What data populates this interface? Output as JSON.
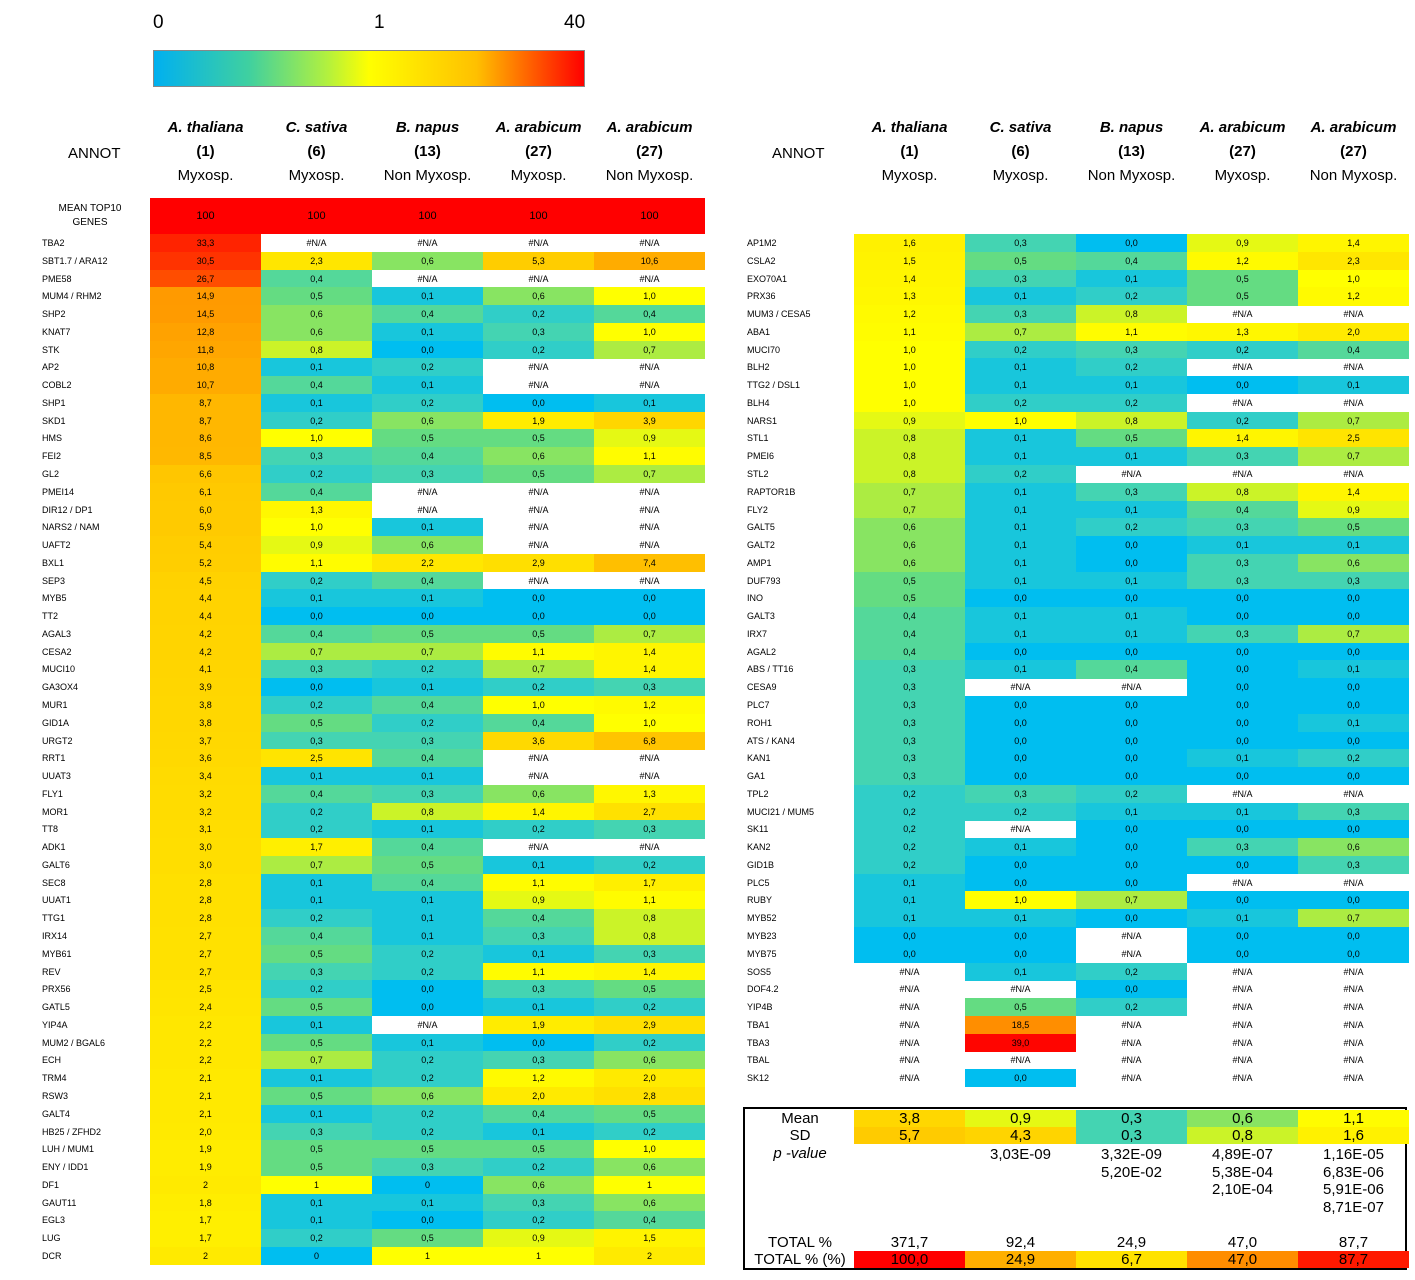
{
  "scale": {
    "labels": [
      "0",
      "1",
      "40"
    ],
    "colors": [
      "#00b0f0",
      "#ffff00",
      "#ff0000"
    ]
  },
  "headers": [
    {
      "species": "A. thaliana",
      "n": "(1)",
      "type": "Myxosp."
    },
    {
      "species": "C. sativa",
      "n": "(6)",
      "type": "Myxosp."
    },
    {
      "species": "B. napus",
      "n": "(13)",
      "type": "Non Myxosp."
    },
    {
      "species": "A. arabicum",
      "n": "(27)",
      "type": "Myxosp."
    },
    {
      "species": "A. arabicum",
      "n": "(27)",
      "type": "Non Myxosp."
    }
  ],
  "annot_label": "ANNOT",
  "top10_label": "MEAN TOP10 GENES",
  "top10_values": [
    "100",
    "100",
    "100",
    "100",
    "100"
  ],
  "chart_data": {
    "type": "heatmap",
    "title": "",
    "columns": [
      "A. thaliana (1) Myxosp.",
      "C. sativa (6) Myxosp.",
      "B. napus (13) Non Myxosp.",
      "A. arabicum (27) Myxosp.",
      "A. arabicum (27) Non Myxosp."
    ],
    "color_scale": {
      "min": 0,
      "mid": 1,
      "max": 40
    },
    "left_rows": [
      [
        "TBA2",
        "33,3",
        "#N/A",
        "#N/A",
        "#N/A",
        "#N/A"
      ],
      [
        "SBT1.7 / ARA12",
        "30,5",
        "2,3",
        "0,6",
        "5,3",
        "10,6"
      ],
      [
        "PME58",
        "26,7",
        "0,4",
        "#N/A",
        "#N/A",
        "#N/A"
      ],
      [
        "MUM4 / RHM2",
        "14,9",
        "0,5",
        "0,1",
        "0,6",
        "1,0"
      ],
      [
        "SHP2",
        "14,5",
        "0,6",
        "0,4",
        "0,2",
        "0,4"
      ],
      [
        "KNAT7",
        "12,8",
        "0,6",
        "0,1",
        "0,3",
        "1,0"
      ],
      [
        "STK",
        "11,8",
        "0,8",
        "0,0",
        "0,2",
        "0,7"
      ],
      [
        "AP2",
        "10,8",
        "0,1",
        "0,2",
        "#N/A",
        "#N/A"
      ],
      [
        "COBL2",
        "10,7",
        "0,4",
        "0,1",
        "#N/A",
        "#N/A"
      ],
      [
        "SHP1",
        "8,7",
        "0,1",
        "0,2",
        "0,0",
        "0,1"
      ],
      [
        "SKD1",
        "8,7",
        "0,2",
        "0,6",
        "1,9",
        "3,9"
      ],
      [
        "HMS",
        "8,6",
        "1,0",
        "0,5",
        "0,5",
        "0,9"
      ],
      [
        "FEI2",
        "8,5",
        "0,3",
        "0,4",
        "0,6",
        "1,1"
      ],
      [
        "GL2",
        "6,6",
        "0,2",
        "0,3",
        "0,5",
        "0,7"
      ],
      [
        "PMEI14",
        "6,1",
        "0,4",
        "#N/A",
        "#N/A",
        "#N/A"
      ],
      [
        "DIR12 / DP1",
        "6,0",
        "1,3",
        "#N/A",
        "#N/A",
        "#N/A"
      ],
      [
        "NARS2 / NAM",
        "5,9",
        "1,0",
        "0,1",
        "#N/A",
        "#N/A"
      ],
      [
        "UAFT2",
        "5,4",
        "0,9",
        "0,6",
        "#N/A",
        "#N/A"
      ],
      [
        "BXL1",
        "5,2",
        "1,1",
        "2,2",
        "2,9",
        "7,4"
      ],
      [
        "SEP3",
        "4,5",
        "0,2",
        "0,4",
        "#N/A",
        "#N/A"
      ],
      [
        "MYB5",
        "4,4",
        "0,1",
        "0,1",
        "0,0",
        "0,0"
      ],
      [
        "TT2",
        "4,4",
        "0,0",
        "0,0",
        "0,0",
        "0,0"
      ],
      [
        "AGAL3",
        "4,2",
        "0,4",
        "0,5",
        "0,5",
        "0,7"
      ],
      [
        "CESA2",
        "4,2",
        "0,7",
        "0,7",
        "1,1",
        "1,4"
      ],
      [
        "MUCI10",
        "4,1",
        "0,3",
        "0,2",
        "0,7",
        "1,4"
      ],
      [
        "GA3OX4",
        "3,9",
        "0,0",
        "0,1",
        "0,2",
        "0,3"
      ],
      [
        "MUR1",
        "3,8",
        "0,2",
        "0,4",
        "1,0",
        "1,2"
      ],
      [
        "GID1A",
        "3,8",
        "0,5",
        "0,2",
        "0,4",
        "1,0"
      ],
      [
        "URGT2",
        "3,7",
        "0,3",
        "0,3",
        "3,6",
        "6,8"
      ],
      [
        "RRT1",
        "3,6",
        "2,5",
        "0,4",
        "#N/A",
        "#N/A"
      ],
      [
        "UUAT3",
        "3,4",
        "0,1",
        "0,1",
        "#N/A",
        "#N/A"
      ],
      [
        "FLY1",
        "3,2",
        "0,4",
        "0,3",
        "0,6",
        "1,3"
      ],
      [
        "MOR1",
        "3,2",
        "0,2",
        "0,8",
        "1,4",
        "2,7"
      ],
      [
        "TT8",
        "3,1",
        "0,2",
        "0,1",
        "0,2",
        "0,3"
      ],
      [
        "ADK1",
        "3,0",
        "1,7",
        "0,4",
        "#N/A",
        "#N/A"
      ],
      [
        "GALT6",
        "3,0",
        "0,7",
        "0,5",
        "0,1",
        "0,2"
      ],
      [
        "SEC8",
        "2,8",
        "0,1",
        "0,4",
        "1,1",
        "1,7"
      ],
      [
        "UUAT1",
        "2,8",
        "0,1",
        "0,1",
        "0,9",
        "1,1"
      ],
      [
        "TTG1",
        "2,8",
        "0,2",
        "0,1",
        "0,4",
        "0,8"
      ],
      [
        "IRX14",
        "2,7",
        "0,4",
        "0,1",
        "0,3",
        "0,8"
      ],
      [
        "MYB61",
        "2,7",
        "0,5",
        "0,2",
        "0,1",
        "0,3"
      ],
      [
        "REV",
        "2,7",
        "0,3",
        "0,2",
        "1,1",
        "1,4"
      ],
      [
        "PRX56",
        "2,5",
        "0,2",
        "0,0",
        "0,3",
        "0,5"
      ],
      [
        "GATL5",
        "2,4",
        "0,5",
        "0,0",
        "0,1",
        "0,2"
      ],
      [
        "YIP4A",
        "2,2",
        "0,1",
        "#N/A",
        "1,9",
        "2,9"
      ],
      [
        "MUM2 / BGAL6",
        "2,2",
        "0,5",
        "0,1",
        "0,0",
        "0,2"
      ],
      [
        "ECH",
        "2,2",
        "0,7",
        "0,2",
        "0,3",
        "0,6"
      ],
      [
        "TRM4",
        "2,1",
        "0,1",
        "0,2",
        "1,2",
        "2,0"
      ],
      [
        "RSW3",
        "2,1",
        "0,5",
        "0,6",
        "2,0",
        "2,8"
      ],
      [
        "GALT4",
        "2,1",
        "0,1",
        "0,2",
        "0,4",
        "0,5"
      ],
      [
        "HB25 / ZFHD2",
        "2,0",
        "0,3",
        "0,2",
        "0,1",
        "0,2"
      ],
      [
        "LUH / MUM1",
        "1,9",
        "0,5",
        "0,5",
        "0,5",
        "1,0"
      ],
      [
        "ENY / IDD1",
        "1,9",
        "0,5",
        "0,3",
        "0,2",
        "0,6"
      ],
      [
        "DF1",
        "2",
        "1",
        "0",
        "0,6",
        "1"
      ],
      [
        "GAUT11",
        "1,8",
        "0,1",
        "0,1",
        "0,3",
        "0,6"
      ],
      [
        "EGL3",
        "1,7",
        "0,1",
        "0,0",
        "0,2",
        "0,4"
      ],
      [
        "LUG",
        "1,7",
        "0,2",
        "0,5",
        "0,9",
        "1,5"
      ],
      [
        "DCR",
        "2",
        "0",
        "1",
        "1",
        "2"
      ]
    ],
    "right_rows": [
      [
        "AP1M2",
        "1,6",
        "0,3",
        "0,0",
        "0,9",
        "1,4"
      ],
      [
        "CSLA2",
        "1,5",
        "0,5",
        "0,4",
        "1,2",
        "2,3"
      ],
      [
        "EXO70A1",
        "1,4",
        "0,3",
        "0,1",
        "0,5",
        "1,0"
      ],
      [
        "PRX36",
        "1,3",
        "0,1",
        "0,2",
        "0,5",
        "1,2"
      ],
      [
        "MUM3 / CESA5",
        "1,2",
        "0,3",
        "0,8",
        "#N/A",
        "#N/A"
      ],
      [
        "ABA1",
        "1,1",
        "0,7",
        "1,1",
        "1,3",
        "2,0"
      ],
      [
        "MUCI70",
        "1,0",
        "0,2",
        "0,3",
        "0,2",
        "0,4"
      ],
      [
        "BLH2",
        "1,0",
        "0,1",
        "0,2",
        "#N/A",
        "#N/A"
      ],
      [
        "TTG2 / DSL1",
        "1,0",
        "0,1",
        "0,1",
        "0,0",
        "0,1"
      ],
      [
        "BLH4",
        "1,0",
        "0,2",
        "0,2",
        "#N/A",
        "#N/A"
      ],
      [
        "NARS1",
        "0,9",
        "1,0",
        "0,8",
        "0,2",
        "0,7"
      ],
      [
        "STL1",
        "0,8",
        "0,1",
        "0,5",
        "1,4",
        "2,5"
      ],
      [
        "PMEI6",
        "0,8",
        "0,1",
        "0,1",
        "0,3",
        "0,7"
      ],
      [
        "STL2",
        "0,8",
        "0,2",
        "#N/A",
        "#N/A",
        "#N/A"
      ],
      [
        "RAPTOR1B",
        "0,7",
        "0,1",
        "0,3",
        "0,8",
        "1,4"
      ],
      [
        "FLY2",
        "0,7",
        "0,1",
        "0,1",
        "0,4",
        "0,9"
      ],
      [
        "GALT5",
        "0,6",
        "0,1",
        "0,2",
        "0,3",
        "0,5"
      ],
      [
        "GALT2",
        "0,6",
        "0,1",
        "0,0",
        "0,1",
        "0,1"
      ],
      [
        "AMP1",
        "0,6",
        "0,1",
        "0,0",
        "0,3",
        "0,6"
      ],
      [
        "DUF793",
        "0,5",
        "0,1",
        "0,1",
        "0,3",
        "0,3"
      ],
      [
        "INO",
        "0,5",
        "0,0",
        "0,0",
        "0,0",
        "0,0"
      ],
      [
        "GALT3",
        "0,4",
        "0,1",
        "0,1",
        "0,0",
        "0,0"
      ],
      [
        "IRX7",
        "0,4",
        "0,1",
        "0,1",
        "0,3",
        "0,7"
      ],
      [
        "AGAL2",
        "0,4",
        "0,0",
        "0,0",
        "0,0",
        "0,0"
      ],
      [
        "ABS / TT16",
        "0,3",
        "0,1",
        "0,4",
        "0,0",
        "0,1"
      ],
      [
        "CESA9",
        "0,3",
        "#N/A",
        "#N/A",
        "0,0",
        "0,0"
      ],
      [
        "PLC7",
        "0,3",
        "0,0",
        "0,0",
        "0,0",
        "0,0"
      ],
      [
        "ROH1",
        "0,3",
        "0,0",
        "0,0",
        "0,0",
        "0,1"
      ],
      [
        "ATS / KAN4",
        "0,3",
        "0,0",
        "0,0",
        "0,0",
        "0,0"
      ],
      [
        "KAN1",
        "0,3",
        "0,0",
        "0,0",
        "0,1",
        "0,2"
      ],
      [
        "GA1",
        "0,3",
        "0,0",
        "0,0",
        "0,0",
        "0,0"
      ],
      [
        "TPL2",
        "0,2",
        "0,3",
        "0,2",
        "#N/A",
        "#N/A"
      ],
      [
        "MUCI21 / MUM5",
        "0,2",
        "0,2",
        "0,1",
        "0,1",
        "0,3"
      ],
      [
        "SK11",
        "0,2",
        "#N/A",
        "0,0",
        "0,0",
        "0,0"
      ],
      [
        "KAN2",
        "0,2",
        "0,1",
        "0,0",
        "0,3",
        "0,6"
      ],
      [
        "GID1B",
        "0,2",
        "0,0",
        "0,0",
        "0,0",
        "0,3"
      ],
      [
        "PLC5",
        "0,1",
        "0,0",
        "0,0",
        "#N/A",
        "#N/A"
      ],
      [
        "RUBY",
        "0,1",
        "1,0",
        "0,7",
        "0,0",
        "0,0"
      ],
      [
        "MYB52",
        "0,1",
        "0,1",
        "0,0",
        "0,1",
        "0,7"
      ],
      [
        "MYB23",
        "0,0",
        "0,0",
        "#N/A",
        "0,0",
        "0,0"
      ],
      [
        "MYB75",
        "0,0",
        "0,0",
        "#N/A",
        "0,0",
        "0,0"
      ],
      [
        "SOS5",
        "#N/A",
        "0,1",
        "0,2",
        "#N/A",
        "#N/A"
      ],
      [
        "DOF4.2",
        "#N/A",
        "#N/A",
        "0,0",
        "#N/A",
        "#N/A"
      ],
      [
        "YIP4B",
        "#N/A",
        "0,5",
        "0,2",
        "#N/A",
        "#N/A"
      ],
      [
        "TBA1",
        "#N/A",
        "18,5",
        "#N/A",
        "#N/A",
        "#N/A"
      ],
      [
        "TBA3",
        "#N/A",
        "39,0",
        "#N/A",
        "#N/A",
        "#N/A"
      ],
      [
        "TBAL",
        "#N/A",
        "#N/A",
        "#N/A",
        "#N/A",
        "#N/A"
      ],
      [
        "SK12",
        "#N/A",
        "0,0",
        "#N/A",
        "#N/A",
        "#N/A"
      ]
    ],
    "summary": {
      "mean_label": "Mean",
      "sd_label": "SD",
      "pvalue_label": "p -value",
      "total_label": "TOTAL %",
      "total_pct_label": "TOTAL % (%)",
      "mean": [
        "3,8",
        "0,9",
        "0,3",
        "0,6",
        "1,1"
      ],
      "sd": [
        "5,7",
        "4,3",
        "0,3",
        "0,8",
        "1,6"
      ],
      "pvalues": [
        [],
        [
          "3,03E-09"
        ],
        [
          "3,32E-09",
          "5,20E-02"
        ],
        [
          "4,89E-07",
          "5,38E-04",
          "2,10E-04"
        ],
        [
          "1,16E-05",
          "6,83E-06",
          "5,91E-06",
          "8,71E-07"
        ]
      ],
      "total": [
        "371,7",
        "92,4",
        "24,9",
        "47,0",
        "87,7"
      ],
      "total_pct": [
        "100,0",
        "24,9",
        "6,7",
        "47,0",
        "87,7"
      ]
    }
  }
}
